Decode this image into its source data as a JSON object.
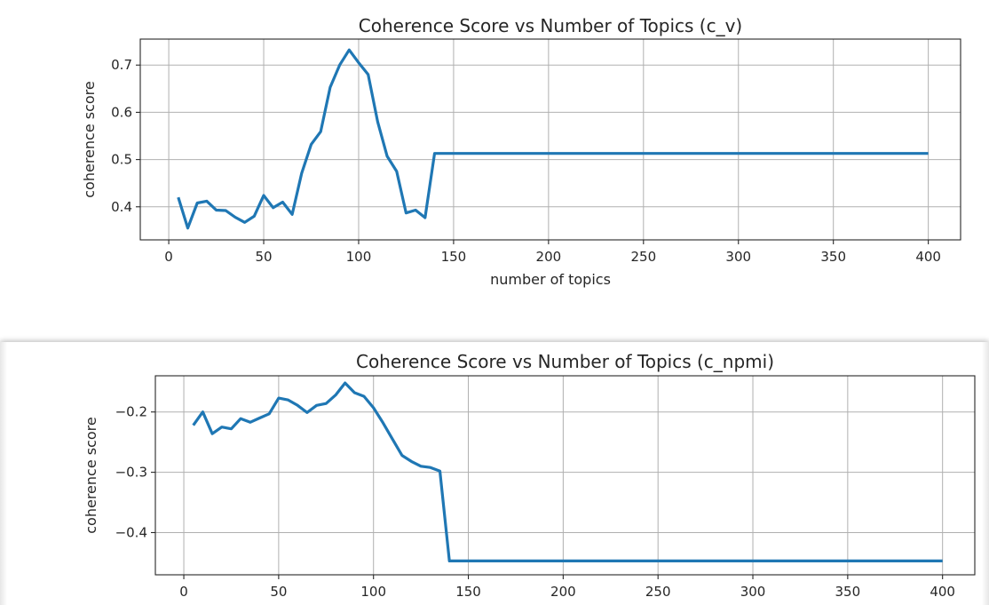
{
  "chart_data": [
    {
      "type": "line",
      "title": "Coherence Score vs Number of Topics (c_v)",
      "xlabel": "number of topics",
      "ylabel": "coherence score",
      "xlim": [
        -15,
        417
      ],
      "ylim": [
        0.33,
        0.755
      ],
      "xticks": [
        0,
        50,
        100,
        150,
        200,
        250,
        300,
        350,
        400
      ],
      "yticks": [
        0.4,
        0.5,
        0.6,
        0.7
      ],
      "ytick_labels": [
        "0.4",
        "0.5",
        "0.6",
        "0.7"
      ],
      "grid": true,
      "color": "#1f77b4",
      "series": [
        {
          "x": [
            5,
            10,
            15,
            20,
            25,
            30,
            35,
            40,
            45,
            50,
            55,
            60,
            65,
            70,
            75,
            80,
            85,
            90,
            95,
            100,
            105,
            110,
            115,
            120,
            125,
            130,
            135,
            140,
            150,
            200,
            250,
            300,
            350,
            400
          ],
          "values": [
            0.42,
            0.355,
            0.408,
            0.412,
            0.393,
            0.392,
            0.378,
            0.367,
            0.38,
            0.424,
            0.398,
            0.41,
            0.384,
            0.471,
            0.532,
            0.559,
            0.653,
            0.7,
            0.732,
            0.705,
            0.68,
            0.58,
            0.507,
            0.475,
            0.387,
            0.393,
            0.377,
            0.513,
            0.513,
            0.513,
            0.513,
            0.513,
            0.513,
            0.513
          ]
        }
      ]
    },
    {
      "type": "line",
      "title": "Coherence Score vs Number of Topics (c_npmi)",
      "xlabel": "",
      "ylabel": "coherence score",
      "xlim": [
        -15,
        417
      ],
      "ylim": [
        -0.47,
        -0.14
      ],
      "xticks": [
        0,
        50,
        100,
        150,
        200,
        250,
        300,
        350,
        400
      ],
      "yticks": [
        -0.4,
        -0.3,
        -0.2
      ],
      "ytick_labels": [
        "−0.4",
        "−0.3",
        "−0.2"
      ],
      "grid": true,
      "color": "#1f77b4",
      "series": [
        {
          "x": [
            5,
            10,
            15,
            20,
            25,
            30,
            35,
            40,
            45,
            50,
            55,
            60,
            65,
            70,
            75,
            80,
            85,
            90,
            95,
            100,
            105,
            110,
            115,
            120,
            125,
            130,
            135,
            140,
            150,
            200,
            250,
            300,
            350,
            400
          ],
          "values": [
            -0.222,
            -0.2,
            -0.236,
            -0.225,
            -0.228,
            -0.211,
            -0.217,
            -0.21,
            -0.203,
            -0.177,
            -0.18,
            -0.189,
            -0.201,
            -0.189,
            -0.186,
            -0.172,
            -0.152,
            -0.168,
            -0.174,
            -0.193,
            -0.218,
            -0.245,
            -0.272,
            -0.282,
            -0.29,
            -0.292,
            -0.298,
            -0.447,
            -0.447,
            -0.447,
            -0.447,
            -0.447,
            -0.447,
            -0.447
          ]
        }
      ]
    }
  ]
}
